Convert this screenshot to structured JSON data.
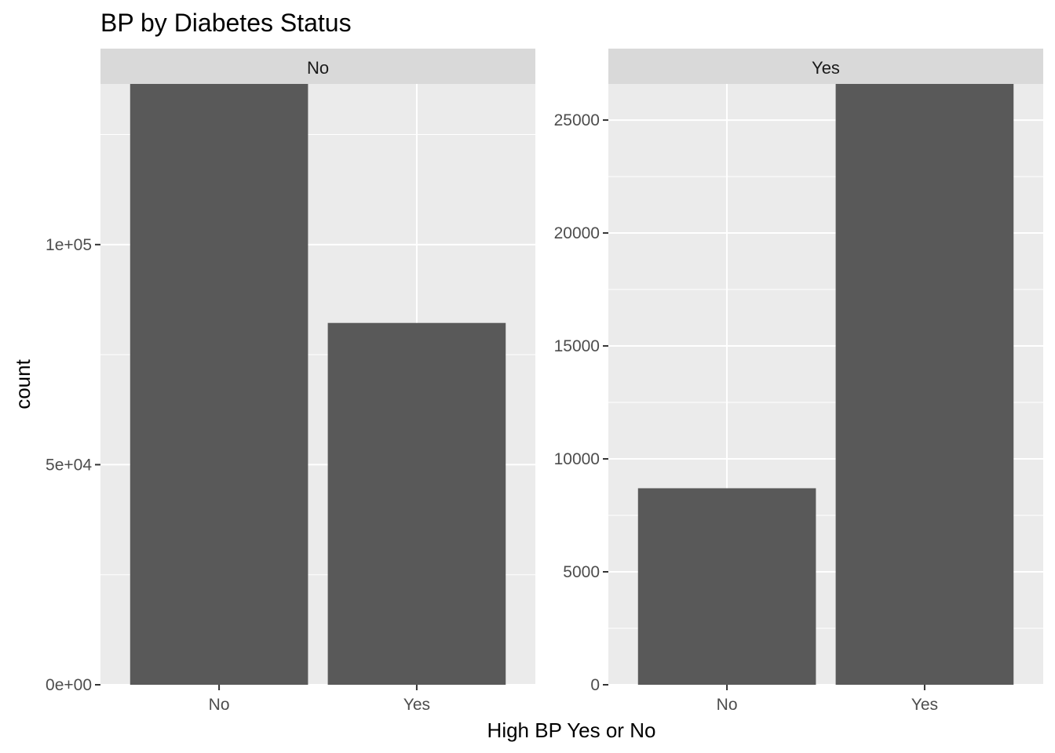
{
  "chart_data": {
    "type": "bar",
    "title": "BP by Diabetes Status",
    "xlabel": "High BP Yes or No",
    "ylabel": "count",
    "grid": true,
    "facet_scales": "free_y",
    "panels": [
      {
        "facet": "No",
        "categories": [
          "No",
          "Yes"
        ],
        "values": [
          136500,
          82200
        ],
        "ylim": [
          0,
          136500
        ],
        "yticks": [
          0,
          50000,
          100000
        ],
        "ytick_labels": [
          "0e+00",
          "5e+04",
          "1e+05"
        ],
        "yminor": [
          25000,
          75000,
          125000
        ]
      },
      {
        "facet": "Yes",
        "categories": [
          "No",
          "Yes"
        ],
        "values": [
          8700,
          26600
        ],
        "ylim": [
          0,
          26600
        ],
        "yticks": [
          0,
          5000,
          10000,
          15000,
          20000,
          25000
        ],
        "ytick_labels": [
          "0",
          "5000",
          "10000",
          "15000",
          "20000",
          "25000"
        ],
        "yminor": [
          2500,
          7500,
          12500,
          17500,
          22500
        ]
      }
    ],
    "colors": {
      "bar": "#595959",
      "panel_bg": "#ebebeb",
      "strip_bg": "#d9d9d9",
      "grid": "#ffffff",
      "tick": "#333333"
    }
  }
}
